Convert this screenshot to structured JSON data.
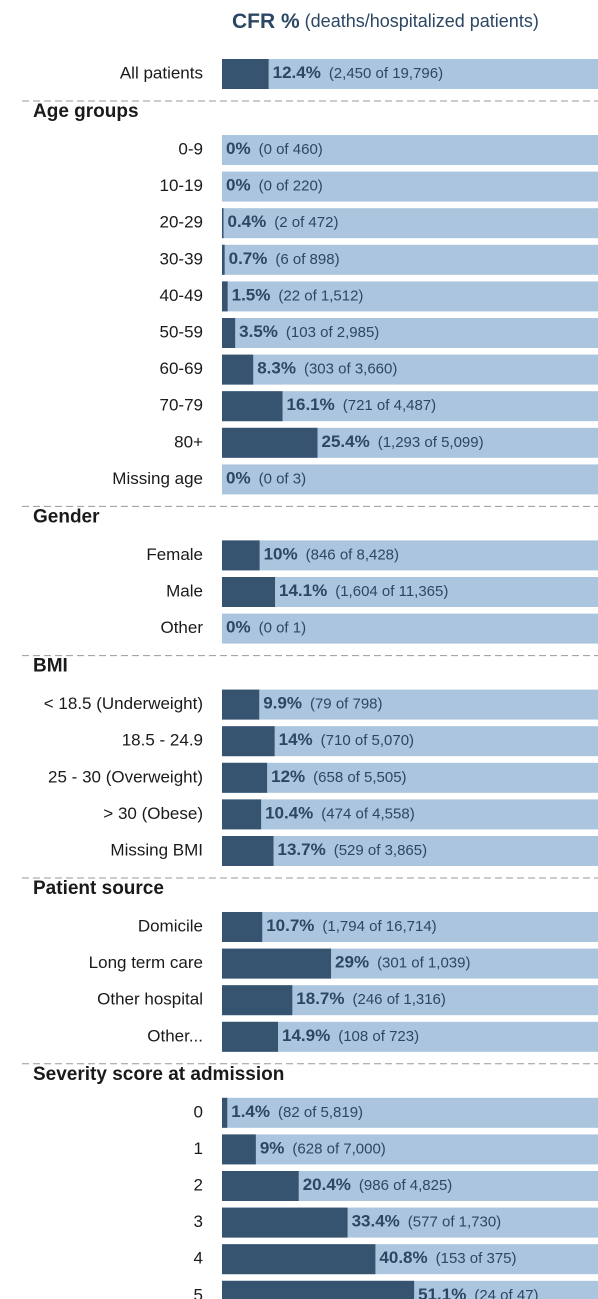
{
  "chart_data": {
    "type": "bar",
    "title": "CFR %",
    "subtitle": "(deaths/hospitalized patients)",
    "xlim": [
      0,
      100
    ],
    "color": "#36536f",
    "track_color": "#aac5dd",
    "groups": [
      {
        "categories": [
          "All patients"
        ],
        "values": [
          12.4
        ],
        "value_labels": [
          "12.4%"
        ],
        "notes": [
          "(2,450 of 19,796)"
        ]
      },
      {
        "name": "Age groups",
        "categories": [
          "0-9",
          "10-19",
          "20-29",
          "30-39",
          "40-49",
          "50-59",
          "60-69",
          "70-79",
          "80+",
          "Missing age"
        ],
        "values": [
          0,
          0,
          0.4,
          0.7,
          1.5,
          3.5,
          8.3,
          16.1,
          25.4,
          0
        ],
        "value_labels": [
          "0%",
          "0%",
          "0.4%",
          "0.7%",
          "1.5%",
          "3.5%",
          "8.3%",
          "16.1%",
          "25.4%",
          "0%"
        ],
        "notes": [
          "(0 of 460)",
          "(0 of 220)",
          "(2 of 472)",
          "(6 of 898)",
          "(22 of 1,512)",
          "(103 of 2,985)",
          "(303 of 3,660)",
          "(721 of 4,487)",
          "(1,293 of 5,099)",
          "(0 of 3)"
        ]
      },
      {
        "name": "Gender",
        "categories": [
          "Female",
          "Male",
          "Other"
        ],
        "values": [
          10,
          14.1,
          0
        ],
        "value_labels": [
          "10%",
          "14.1%",
          "0%"
        ],
        "notes": [
          "(846 of 8,428)",
          "(1,604 of 11,365)",
          "(0 of 1)"
        ]
      },
      {
        "name": "BMI",
        "categories": [
          "< 18.5 (Underweight)",
          "18.5 - 24.9",
          "25 - 30 (Overweight)",
          "> 30 (Obese)",
          "Missing BMI"
        ],
        "values": [
          9.9,
          14,
          12,
          10.4,
          13.7
        ],
        "value_labels": [
          "9.9%",
          "14%",
          "12%",
          "10.4%",
          "13.7%"
        ],
        "notes": [
          "(79 of 798)",
          "(710 of 5,070)",
          "(658 of 5,505)",
          "(474 of 4,558)",
          "(529 of 3,865)"
        ]
      },
      {
        "name": "Patient source",
        "categories": [
          "Domicile",
          "Long term care",
          "Other hospital",
          "Other..."
        ],
        "values": [
          10.7,
          29,
          18.7,
          14.9
        ],
        "value_labels": [
          "10.7%",
          "29%",
          "18.7%",
          "14.9%"
        ],
        "notes": [
          "(1,794 of 16,714)",
          "(301 of 1,039)",
          "(246 of 1,316)",
          "(108 of 723)"
        ]
      },
      {
        "name": "Severity score at admission",
        "categories": [
          "0",
          "1",
          "2",
          "3",
          "4",
          "5"
        ],
        "values": [
          1.4,
          9,
          20.4,
          33.4,
          40.8,
          51.1
        ],
        "value_labels": [
          "1.4%",
          "9%",
          "20.4%",
          "33.4%",
          "40.8%",
          "51.1%"
        ],
        "notes": [
          "(82 of 5,819)",
          "(628 of 7,000)",
          "(986 of 4,825)",
          "(577 of 1,730)",
          "(153 of 375)",
          "(24 of 47)"
        ]
      }
    ]
  }
}
